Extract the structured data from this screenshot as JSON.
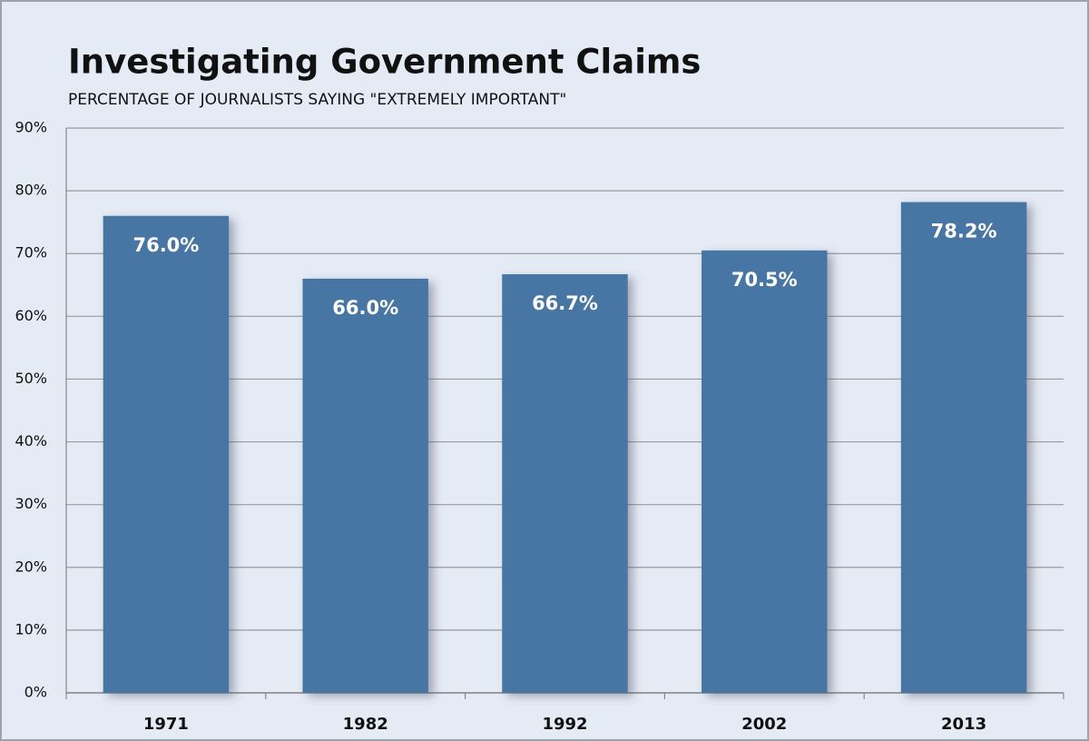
{
  "chart_data": {
    "type": "bar",
    "title": "Investigating Government Claims",
    "subtitle": "PERCENTAGE OF JOURNALISTS SAYING \"EXTREMELY IMPORTANT\"",
    "categories": [
      "1971",
      "1982",
      "1992",
      "2002",
      "2013"
    ],
    "values": [
      76.0,
      66.0,
      66.7,
      70.5,
      78.2
    ],
    "value_labels": [
      "76.0%",
      "66.0%",
      "66.7%",
      "70.5%",
      "78.2%"
    ],
    "color": "#4674a4",
    "ylim": [
      0,
      90
    ],
    "yticks": [
      {
        "value": 0,
        "label": "0%"
      },
      {
        "value": 10,
        "label": "10%"
      },
      {
        "value": 20,
        "label": "20%"
      },
      {
        "value": 30,
        "label": "30%"
      },
      {
        "value": 40,
        "label": "40%"
      },
      {
        "value": 50,
        "label": "50%"
      },
      {
        "value": 60,
        "label": "60%"
      },
      {
        "value": 70,
        "label": "70%"
      },
      {
        "value": 80,
        "label": "80%"
      },
      {
        "value": 90,
        "label": "90%"
      }
    ],
    "grid": true
  }
}
